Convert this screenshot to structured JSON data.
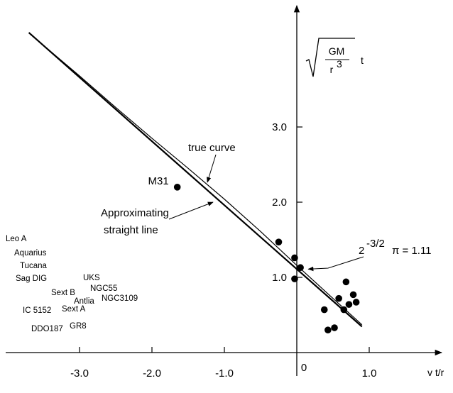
{
  "chart_data": {
    "type": "scatter",
    "title": "",
    "xlabel": "v t/r",
    "ylabel": "sqrt(GM/r^3) t",
    "ylabel_parts": {
      "numerator": "GM",
      "denominator": "r",
      "exponent": "3",
      "suffix": "t"
    },
    "xlim": [
      -3.7,
      1.4
    ],
    "ylim": [
      0,
      4.4
    ],
    "x_ticks": [
      {
        "value": -3.0,
        "label": "-3.0"
      },
      {
        "value": -2.0,
        "label": "-2.0"
      },
      {
        "value": -1.0,
        "label": "-1.0"
      },
      {
        "value": 0.0,
        "label": "0"
      },
      {
        "value": 1.0,
        "label": "1.0"
      }
    ],
    "y_ticks": [
      {
        "value": 1.0,
        "label": "1.0"
      },
      {
        "value": 2.0,
        "label": "2.0"
      },
      {
        "value": 3.0,
        "label": "3.0"
      }
    ],
    "grid": false,
    "points": [
      {
        "x": -1.65,
        "y": 2.2,
        "label": "M31"
      },
      {
        "x": -0.25,
        "y": 1.47
      },
      {
        "x": -0.03,
        "y": 1.26
      },
      {
        "x": 0.05,
        "y": 1.13
      },
      {
        "x": -0.03,
        "y": 0.98
      },
      {
        "x": 0.68,
        "y": 0.94
      },
      {
        "x": 0.78,
        "y": 0.77
      },
      {
        "x": 0.58,
        "y": 0.72
      },
      {
        "x": 0.82,
        "y": 0.67
      },
      {
        "x": 0.72,
        "y": 0.64
      },
      {
        "x": 0.38,
        "y": 0.57
      },
      {
        "x": 0.65,
        "y": 0.57
      },
      {
        "x": 0.52,
        "y": 0.33
      },
      {
        "x": 0.43,
        "y": 0.3
      }
    ],
    "true_curve": {
      "label": "true curve",
      "x": [
        -3.7,
        -3.0,
        -2.5,
        -2.0,
        -1.5,
        -1.0,
        -0.5,
        0.0,
        0.5,
        0.9
      ],
      "y": [
        4.25,
        3.68,
        3.26,
        2.85,
        2.45,
        2.04,
        1.61,
        1.16,
        0.72,
        0.37
      ]
    },
    "straight_line": {
      "label": "Approximating straight line",
      "x0": -3.7,
      "x1": 0.9,
      "intercept": 1.11,
      "slope": -0.85
    },
    "intercept_annotation": {
      "base": "2",
      "exponent": "-3/2",
      "tail": "π = 1.11",
      "target": {
        "x": 0.08,
        "y": 1.11
      }
    },
    "curve_labels": {
      "true_curve": "true curve",
      "straight_line_line1": "Approximating",
      "straight_line_line2": "straight line"
    },
    "unplotted_galaxies": [
      {
        "name": "Leo A",
        "col": 0,
        "row": 0
      },
      {
        "name": "Aquarius",
        "col": 1,
        "row": 1
      },
      {
        "name": "Tucana",
        "col": 2,
        "row": 2
      },
      {
        "name": "Sag DIG",
        "col": 3,
        "row": 3
      },
      {
        "name": "UKS",
        "col": 4,
        "row": 4
      },
      {
        "name": "NGC55",
        "col": 5,
        "row": 5
      },
      {
        "name": "Sext B",
        "col": 6,
        "row": 6
      },
      {
        "name": "Antlia",
        "col": 7,
        "row": 7
      },
      {
        "name": "NGC3109",
        "col": 8,
        "row": 8
      },
      {
        "name": "IC 5152",
        "col": 9,
        "row": 9
      },
      {
        "name": "Sext A",
        "col": 10,
        "row": 10
      },
      {
        "name": "DDO187",
        "col": 11,
        "row": 11
      },
      {
        "name": "GR8",
        "col": 12,
        "row": 12
      }
    ]
  }
}
